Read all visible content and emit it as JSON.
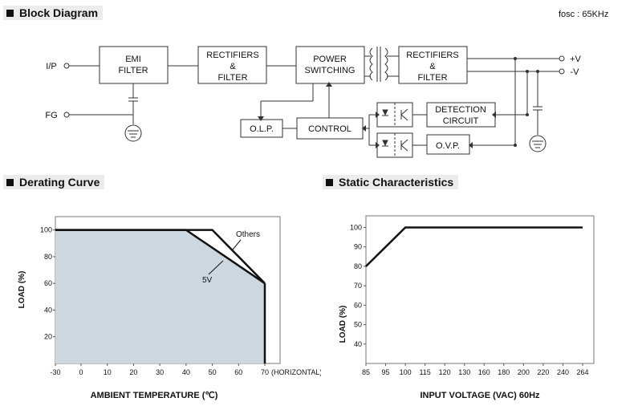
{
  "block_diagram": {
    "title": "Block Diagram",
    "fosc": "fosc : 65KHz",
    "ip_label": "I/P",
    "fg_label": "FG",
    "emi": [
      "EMI",
      "FILTER"
    ],
    "rect1": [
      "RECTIFIERS",
      "&",
      "FILTER"
    ],
    "power": [
      "POWER",
      "SWITCHING"
    ],
    "rect2": [
      "RECTIFIERS",
      "&",
      "FILTER"
    ],
    "olp": "O.L.P.",
    "control": "CONTROL",
    "detection": [
      "DETECTION",
      "CIRCUIT"
    ],
    "ovp": "O.V.P.",
    "vplus": "+V",
    "vminus": "-V"
  },
  "derating": {
    "title": "Derating Curve",
    "chart_data": {
      "type": "line",
      "xlabel": "AMBIENT TEMPERATURE (℃)",
      "ylabel": "LOAD (%)",
      "x_ticks": [
        "-30",
        "0",
        "10",
        "20",
        "30",
        "40",
        "50",
        "60",
        "70"
      ],
      "x_suffix": "(HORIZONTAL)",
      "y_ticks": [
        "20",
        "40",
        "60",
        "80",
        "100"
      ],
      "series": [
        {
          "name": "Others",
          "x": [
            -30,
            50,
            70
          ],
          "y": [
            100,
            100,
            60
          ]
        },
        {
          "name": "5V",
          "x": [
            -30,
            40,
            70
          ],
          "y": [
            100,
            100,
            60
          ]
        }
      ],
      "drop_at": 70,
      "fill_color": "#cdd7df"
    }
  },
  "static": {
    "title": "Static Characteristics",
    "chart_data": {
      "type": "line",
      "xlabel": "INPUT VOLTAGE (VAC) 60Hz",
      "ylabel": "LOAD (%)",
      "x_ticks": [
        "85",
        "95",
        "100",
        "115",
        "120",
        "130",
        "160",
        "180",
        "200",
        "220",
        "240",
        "264"
      ],
      "y_ticks": [
        "40",
        "50",
        "60",
        "70",
        "80",
        "90",
        "100"
      ],
      "series": [
        {
          "x": [
            "85",
            "100",
            "264"
          ],
          "y": [
            80,
            100,
            100
          ]
        }
      ]
    }
  }
}
